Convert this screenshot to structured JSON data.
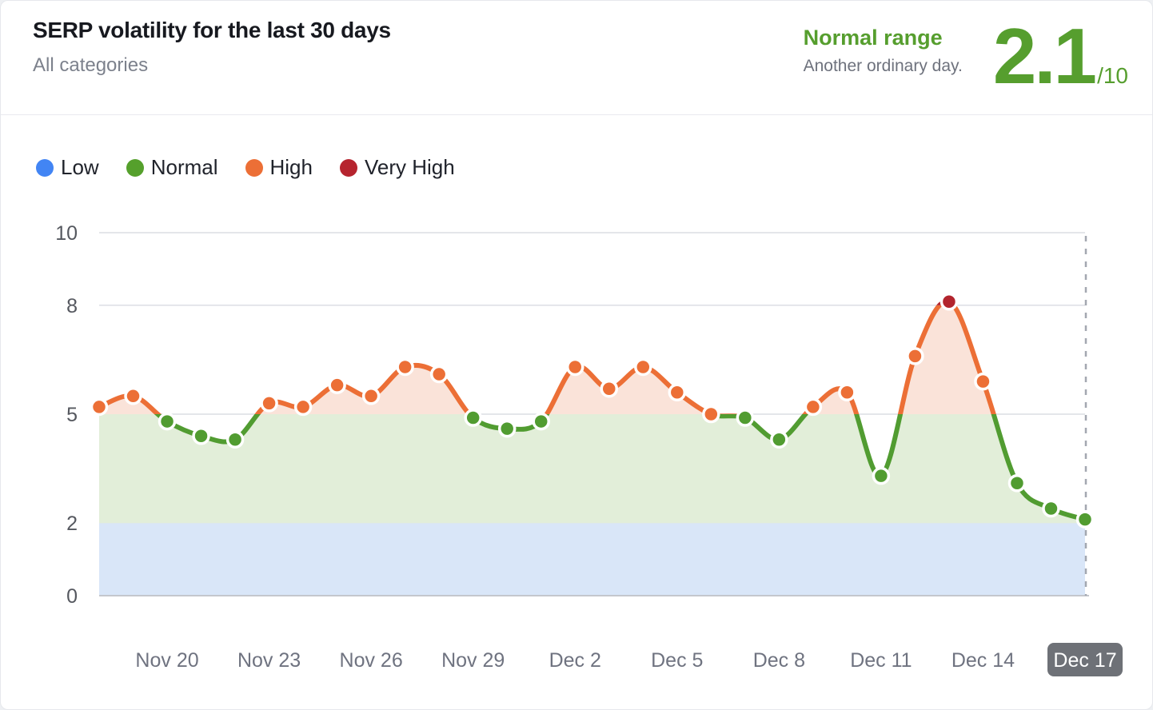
{
  "header": {
    "title": "SERP volatility for the last 30 days",
    "subtitle": "All categories",
    "status_label": "Normal range",
    "status_description": "Another ordinary day.",
    "score": "2.1",
    "score_max": "/10",
    "status_color": "#569e2e"
  },
  "legend": {
    "items": [
      {
        "label": "Low",
        "color": "#4285f4"
      },
      {
        "label": "Normal",
        "color": "#55a02c"
      },
      {
        "label": "High",
        "color": "#ec6f36"
      },
      {
        "label": "Very High",
        "color": "#b6242f"
      }
    ]
  },
  "chart_data": {
    "type": "line",
    "title": "SERP volatility for the last 30 days",
    "xlabel": "",
    "ylabel": "",
    "ylim": [
      0,
      10
    ],
    "y_ticks": [
      0,
      2,
      5,
      8,
      10
    ],
    "grid": true,
    "legend_position": "top-left",
    "zones": [
      {
        "name": "Low",
        "from": 0,
        "to": 2,
        "line_color": "#4285f4",
        "fill_color": "#d9e6f8"
      },
      {
        "name": "Normal",
        "from": 2,
        "to": 5,
        "line_color": "#519c31",
        "fill_color": "#e2eed9"
      },
      {
        "name": "High",
        "from": 5,
        "to": 8,
        "line_color": "#ec6f36",
        "fill_color": "#fae3d9"
      },
      {
        "name": "Very High",
        "from": 8,
        "to": 10,
        "line_color": "#b2242d",
        "fill_color": "#fae3d9"
      }
    ],
    "x": [
      "Nov 18",
      "Nov 19",
      "Nov 20",
      "Nov 21",
      "Nov 22",
      "Nov 23",
      "Nov 24",
      "Nov 25",
      "Nov 26",
      "Nov 27",
      "Nov 28",
      "Nov 29",
      "Nov 30",
      "Dec 1",
      "Dec 2",
      "Dec 3",
      "Dec 4",
      "Dec 5",
      "Dec 6",
      "Dec 7",
      "Dec 8",
      "Dec 9",
      "Dec 10",
      "Dec 11",
      "Dec 12",
      "Dec 13",
      "Dec 14",
      "Dec 15",
      "Dec 16",
      "Dec 17"
    ],
    "values": [
      5.2,
      5.5,
      4.8,
      4.4,
      4.3,
      5.3,
      5.2,
      5.8,
      5.5,
      6.3,
      6.1,
      4.9,
      4.6,
      4.8,
      6.3,
      5.7,
      6.3,
      5.6,
      5.0,
      4.9,
      4.3,
      5.2,
      5.6,
      3.3,
      6.6,
      8.1,
      5.9,
      3.1,
      2.4,
      2.1
    ],
    "x_ticks": [
      {
        "index": 2,
        "label": "Nov 20"
      },
      {
        "index": 5,
        "label": "Nov 23"
      },
      {
        "index": 8,
        "label": "Nov 26"
      },
      {
        "index": 11,
        "label": "Nov 29"
      },
      {
        "index": 14,
        "label": "Dec 2"
      },
      {
        "index": 17,
        "label": "Dec 5"
      },
      {
        "index": 20,
        "label": "Dec 8"
      },
      {
        "index": 23,
        "label": "Dec 11"
      },
      {
        "index": 26,
        "label": "Dec 14"
      },
      {
        "index": 29,
        "label": "Dec 17",
        "selected": true
      }
    ],
    "selected_date_label": "Dec 17",
    "colors": {
      "gridline": "#dcdee4",
      "baseline": "#c4c7cd",
      "dashed_line": "#a3a7b0",
      "y_tick_text": "#55585f",
      "x_tick_text": "#6f7380",
      "badge_bg": "#6e7177",
      "badge_text": "#ffffff"
    }
  }
}
